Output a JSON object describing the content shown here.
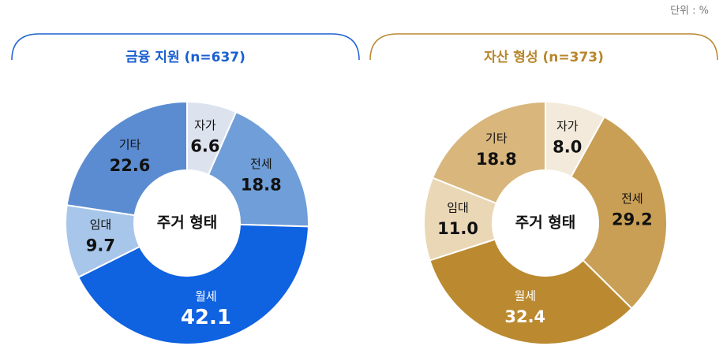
{
  "unit_label": "단위 : %",
  "chart_data": [
    {
      "type": "pie",
      "title": "금융 지원 (n=637)",
      "center_label": "주거 형태",
      "accent": "#1a5fd0",
      "categories": [
        "자가",
        "전세",
        "월세",
        "임대",
        "기타"
      ],
      "values": [
        6.6,
        18.8,
        42.1,
        9.7,
        22.6
      ],
      "colors": [
        "#dde3ee",
        "#6f9ed8",
        "#0f62e0",
        "#a8c6ea",
        "#5b8cd1"
      ],
      "label_colors": [
        "#111111",
        "#111111",
        "#ffffff",
        "#111111",
        "#111111"
      ]
    },
    {
      "type": "pie",
      "title": "자산 형성 (n=373)",
      "center_label": "주거 형태",
      "accent": "#b8862c",
      "categories": [
        "자가",
        "전세",
        "월세",
        "임대",
        "기타"
      ],
      "values": [
        8.0,
        29.2,
        32.4,
        11.0,
        18.8
      ],
      "value_labels": [
        "8.0",
        "29.2",
        "32.4",
        "11.0",
        "18.8"
      ],
      "colors": [
        "#f3eadb",
        "#c99f55",
        "#bb8a30",
        "#ead7b6",
        "#d8b67c"
      ],
      "label_colors": [
        "#111111",
        "#111111",
        "#ffffff",
        "#111111",
        "#111111"
      ]
    }
  ]
}
